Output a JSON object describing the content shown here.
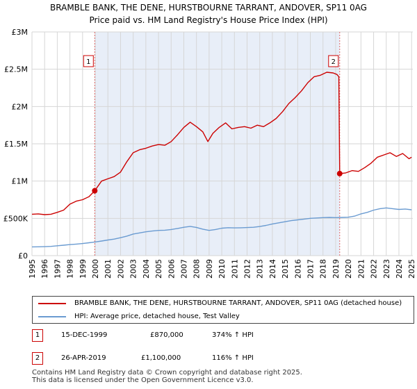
{
  "colors": {
    "price_line": "#cc0000",
    "hpi_line": "#6a9bd1",
    "shade": "#e8eef8",
    "grid": "#d6d6d6",
    "marker_vline": "#e06666"
  },
  "chart_data": {
    "type": "line",
    "title": "BRAMBLE BANK, THE DENE, HURSTBOURNE TARRANT, ANDOVER, SP11 0AG",
    "subtitle": "Price paid vs. HM Land Registry's House Price Index (HPI)",
    "xlabel": "",
    "ylabel": "",
    "xlim": [
      1995,
      2025.1
    ],
    "ylim": [
      0,
      3000000
    ],
    "grid": true,
    "x_ticks": [
      "1995",
      "1996",
      "1997",
      "1998",
      "1999",
      "2000",
      "2001",
      "2002",
      "2003",
      "2004",
      "2005",
      "2006",
      "2007",
      "2008",
      "2009",
      "2010",
      "2011",
      "2012",
      "2013",
      "2014",
      "2015",
      "2016",
      "2017",
      "2018",
      "2019",
      "2020",
      "2021",
      "2022",
      "2023",
      "2024",
      "2025"
    ],
    "y_ticks": [
      {
        "value": 0,
        "label": "£0"
      },
      {
        "value": 500000,
        "label": "£500K"
      },
      {
        "value": 1000000,
        "label": "£1M"
      },
      {
        "value": 1500000,
        "label": "£1.5M"
      },
      {
        "value": 2000000,
        "label": "£2M"
      },
      {
        "value": 2500000,
        "label": "£2.5M"
      },
      {
        "value": 3000000,
        "label": "£3M"
      }
    ],
    "shaded_range": [
      1999.96,
      2019.32
    ],
    "markers": [
      {
        "id": "1",
        "x": 1999.96,
        "y": 870000
      },
      {
        "id": "2",
        "x": 2019.32,
        "y": 1100000
      }
    ],
    "series": [
      {
        "name": "BRAMBLE BANK, THE DENE, HURSTBOURNE TARRANT, ANDOVER, SP11 0AG (detached house)",
        "color": "#cc0000",
        "x": [
          1995,
          1995.5,
          1996,
          1996.5,
          1997,
          1997.5,
          1998,
          1998.5,
          1999,
          1999.5,
          1999.96,
          2000.5,
          2001,
          2001.5,
          2002,
          2002.5,
          2003,
          2003.5,
          2004,
          2004.5,
          2005,
          2005.5,
          2006,
          2006.5,
          2007,
          2007.5,
          2008,
          2008.5,
          2008.9,
          2009.3,
          2009.8,
          2010.3,
          2010.8,
          2011.3,
          2011.8,
          2012.3,
          2012.8,
          2013.3,
          2013.8,
          2014.3,
          2014.8,
          2015.3,
          2015.8,
          2016.3,
          2016.8,
          2017.3,
          2017.8,
          2018.3,
          2018.8,
          2019.1,
          2019.25,
          2019.32,
          2019.8,
          2020.3,
          2020.8,
          2021.3,
          2021.8,
          2022.3,
          2022.8,
          2023.3,
          2023.8,
          2024.3,
          2024.8,
          2025
        ],
        "y": [
          555000,
          560000,
          550000,
          555000,
          580000,
          610000,
          690000,
          730000,
          750000,
          790000,
          870000,
          1000000,
          1030000,
          1060000,
          1120000,
          1260000,
          1380000,
          1420000,
          1440000,
          1470000,
          1490000,
          1480000,
          1530000,
          1620000,
          1720000,
          1790000,
          1730000,
          1660000,
          1530000,
          1640000,
          1720000,
          1780000,
          1700000,
          1720000,
          1730000,
          1710000,
          1750000,
          1730000,
          1780000,
          1840000,
          1930000,
          2040000,
          2120000,
          2210000,
          2320000,
          2400000,
          2420000,
          2460000,
          2450000,
          2430000,
          2400000,
          1100000,
          1110000,
          1140000,
          1130000,
          1180000,
          1240000,
          1320000,
          1350000,
          1380000,
          1330000,
          1370000,
          1300000,
          1320000
        ]
      },
      {
        "name": "HPI: Average price, detached house, Test Valley",
        "color": "#6a9bd1",
        "x": [
          1995,
          1995.5,
          1996,
          1996.5,
          1997,
          1997.5,
          1998,
          1998.5,
          1999,
          1999.5,
          2000,
          2000.5,
          2001,
          2001.5,
          2002,
          2002.5,
          2003,
          2003.5,
          2004,
          2004.5,
          2005,
          2005.5,
          2006,
          2006.5,
          2007,
          2007.5,
          2008,
          2008.5,
          2009,
          2009.5,
          2010,
          2010.5,
          2011,
          2011.5,
          2012,
          2012.5,
          2013,
          2013.5,
          2014,
          2014.5,
          2015,
          2015.5,
          2016,
          2016.5,
          2017,
          2017.5,
          2018,
          2018.5,
          2019,
          2019.5,
          2020,
          2020.5,
          2021,
          2021.5,
          2022,
          2022.5,
          2023,
          2023.5,
          2024,
          2024.5,
          2025
        ],
        "y": [
          117000,
          118000,
          120000,
          124000,
          132000,
          140000,
          148000,
          155000,
          162000,
          172000,
          184000,
          196000,
          210000,
          222000,
          240000,
          262000,
          290000,
          305000,
          320000,
          330000,
          338000,
          341000,
          350000,
          364000,
          380000,
          392000,
          378000,
          355000,
          338000,
          350000,
          368000,
          375000,
          372000,
          374000,
          376000,
          380000,
          390000,
          405000,
          425000,
          440000,
          455000,
          470000,
          480000,
          490000,
          500000,
          505000,
          510000,
          512000,
          510000,
          512000,
          515000,
          530000,
          560000,
          580000,
          610000,
          630000,
          640000,
          630000,
          620000,
          625000,
          615000
        ]
      }
    ]
  },
  "legend": {
    "items": [
      {
        "label": "BRAMBLE BANK, THE DENE, HURSTBOURNE TARRANT, ANDOVER, SP11 0AG (detached house)",
        "color": "#cc0000"
      },
      {
        "label": "HPI: Average price, detached house, Test Valley",
        "color": "#6a9bd1"
      }
    ]
  },
  "sales": [
    {
      "id": "1",
      "date": "15-DEC-1999",
      "price": "£870,000",
      "hpi": "374% ↑ HPI"
    },
    {
      "id": "2",
      "date": "26-APR-2019",
      "price": "£1,100,000",
      "hpi": "116% ↑ HPI"
    }
  ],
  "footer": {
    "line1": "Contains HM Land Registry data © Crown copyright and database right 2025.",
    "line2": "This data is licensed under the Open Government Licence v3.0."
  }
}
